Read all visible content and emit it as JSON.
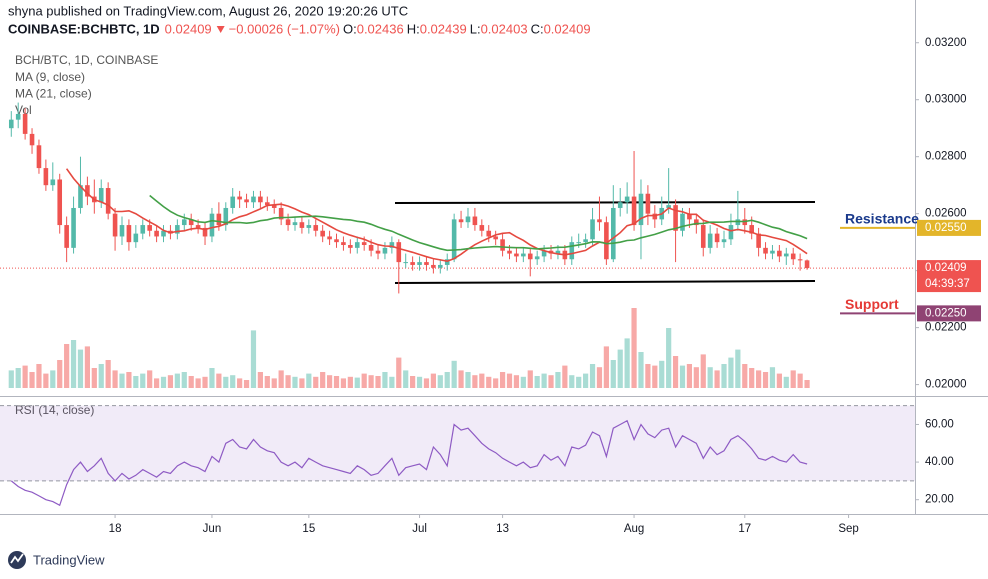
{
  "chart_data": {
    "type": "candlestick",
    "publisher": "shyna published on TradingView.com, August 26, 2020 19:20:26 UTC",
    "symbol": "COINBASE:BCHBTC, 1D",
    "change": "−0.00026 (−1.07%)",
    "ohlc_labels": [
      "O:",
      "H:",
      "L:",
      "C:"
    ],
    "title": "BCH/BTC, 1D, COINBASE",
    "indicators": [
      "MA (9, close)",
      "MA (21, close)",
      "Vol"
    ],
    "ma_periods": [
      9,
      21
    ],
    "rsi_title": "RSI (14, close)",
    "countdown": "04:39:37",
    "footer": "TradingView",
    "annotations": [
      {
        "text": "Resistance",
        "level": {
          "value": 0.0255,
          "label": "0.02550"
        },
        "color": "#1a3a8c",
        "line_color": "#e3b52a"
      },
      {
        "text": "Support",
        "level": {
          "value": 0.0225,
          "label": "0.02250"
        },
        "color": "#e53935",
        "line_color": "#8f4373"
      }
    ],
    "colors": {
      "up": "#53b9a9",
      "down": "#ef5350",
      "ma": [
        "#e5493f",
        "#43a047"
      ],
      "rsi": "#8e5bc4"
    },
    "xlim": [
      -1.63,
      130.6
    ],
    "xticks": [
      {
        "value": 15,
        "label": "18"
      },
      {
        "value": 29,
        "label": "Jun"
      },
      {
        "value": 43,
        "label": "15"
      },
      {
        "value": 59,
        "label": "Jul"
      },
      {
        "value": 71,
        "label": "13"
      },
      {
        "value": 90,
        "label": "Aug"
      },
      {
        "value": 106,
        "label": "17"
      },
      {
        "value": 121,
        "label": "Sep"
      }
    ],
    "ylim": [
      0.0196,
      0.0335
    ],
    "yticks": [
      {
        "value": 0.02,
        "label": "0.02000"
      },
      {
        "value": 0.022,
        "label": "0.02200"
      },
      {
        "value": 0.024,
        "label": "0.02400"
      },
      {
        "value": 0.026,
        "label": "0.02600"
      },
      {
        "value": 0.028,
        "label": "0.02800"
      },
      {
        "value": 0.03,
        "label": "0.03000"
      },
      {
        "value": 0.032,
        "label": "0.03200"
      }
    ],
    "rsi_ylim": [
      12.4,
      74.6
    ],
    "rsi_yticks": [
      {
        "value": 20,
        "label": "20.00"
      },
      {
        "value": 40,
        "label": "40.00"
      },
      {
        "value": 60,
        "label": "60.00"
      }
    ],
    "rsi_levels": [
      30,
      70
    ],
    "candles": [
      [
        0.029,
        0.0296,
        0.0287,
        0.0293
      ],
      [
        0.0293,
        0.0299,
        0.029,
        0.0295
      ],
      [
        0.0295,
        0.0297,
        0.0286,
        0.0288
      ],
      [
        0.0288,
        0.029,
        0.0281,
        0.0284
      ],
      [
        0.0284,
        0.0286,
        0.0274,
        0.0276
      ],
      [
        0.0276,
        0.0279,
        0.0268,
        0.027
      ],
      [
        0.027,
        0.0278,
        0.0268,
        0.0272
      ],
      [
        0.0272,
        0.0274,
        0.0253,
        0.0256
      ],
      [
        0.0256,
        0.0259,
        0.0243,
        0.0248
      ],
      [
        0.0248,
        0.0266,
        0.0246,
        0.0262
      ],
      [
        0.0262,
        0.028,
        0.026,
        0.027
      ],
      [
        0.027,
        0.0273,
        0.0263,
        0.0266
      ],
      [
        0.0266,
        0.0272,
        0.026,
        0.0264
      ],
      [
        0.0264,
        0.0272,
        0.0262,
        0.0269
      ],
      [
        0.0269,
        0.0271,
        0.0258,
        0.026
      ],
      [
        0.026,
        0.0262,
        0.0247,
        0.0252
      ],
      [
        0.0252,
        0.0259,
        0.0249,
        0.0256
      ],
      [
        0.0256,
        0.0258,
        0.0247,
        0.025
      ],
      [
        0.025,
        0.0256,
        0.0248,
        0.0253
      ],
      [
        0.0253,
        0.0258,
        0.0251,
        0.0256
      ],
      [
        0.0256,
        0.0258,
        0.0252,
        0.0254
      ],
      [
        0.0254,
        0.0256,
        0.025,
        0.0252
      ],
      [
        0.0252,
        0.0256,
        0.025,
        0.0254
      ],
      [
        0.0254,
        0.0256,
        0.0251,
        0.0253
      ],
      [
        0.0253,
        0.0258,
        0.0251,
        0.0256
      ],
      [
        0.0256,
        0.026,
        0.0254,
        0.0258
      ],
      [
        0.0258,
        0.026,
        0.0254,
        0.0256
      ],
      [
        0.0256,
        0.0258,
        0.0253,
        0.0255
      ],
      [
        0.0255,
        0.0257,
        0.0249,
        0.0252
      ],
      [
        0.0252,
        0.0262,
        0.025,
        0.026
      ],
      [
        0.026,
        0.0264,
        0.0254,
        0.0256
      ],
      [
        0.0256,
        0.0264,
        0.0254,
        0.0262
      ],
      [
        0.0262,
        0.0269,
        0.026,
        0.0266
      ],
      [
        0.0266,
        0.0268,
        0.0262,
        0.0265
      ],
      [
        0.0265,
        0.0267,
        0.0262,
        0.0264
      ],
      [
        0.0264,
        0.0268,
        0.0262,
        0.0266
      ],
      [
        0.0266,
        0.0268,
        0.0262,
        0.0264
      ],
      [
        0.0264,
        0.0266,
        0.0261,
        0.0263
      ],
      [
        0.0263,
        0.0265,
        0.026,
        0.0262
      ],
      [
        0.0262,
        0.0264,
        0.0256,
        0.0258
      ],
      [
        0.0258,
        0.026,
        0.0254,
        0.0256
      ],
      [
        0.0256,
        0.0259,
        0.0254,
        0.0257
      ],
      [
        0.0257,
        0.0259,
        0.0253,
        0.0255
      ],
      [
        0.0255,
        0.0258,
        0.0253,
        0.0256
      ],
      [
        0.0256,
        0.0258,
        0.0252,
        0.0254
      ],
      [
        0.0254,
        0.0256,
        0.025,
        0.0252
      ],
      [
        0.0252,
        0.0254,
        0.0249,
        0.0251
      ],
      [
        0.0251,
        0.0253,
        0.0248,
        0.025
      ],
      [
        0.025,
        0.0252,
        0.0247,
        0.0249
      ],
      [
        0.0249,
        0.0251,
        0.0246,
        0.0248
      ],
      [
        0.0248,
        0.0252,
        0.0246,
        0.025
      ],
      [
        0.025,
        0.0252,
        0.0247,
        0.0249
      ],
      [
        0.0249,
        0.0251,
        0.0245,
        0.0247
      ],
      [
        0.0247,
        0.0249,
        0.0244,
        0.0246
      ],
      [
        0.0246,
        0.025,
        0.0244,
        0.0248
      ],
      [
        0.0248,
        0.0252,
        0.0246,
        0.025
      ],
      [
        0.025,
        0.0251,
        0.0232,
        0.0243
      ],
      [
        0.0243,
        0.0246,
        0.0241,
        0.0243
      ],
      [
        0.0243,
        0.0245,
        0.024,
        0.0242
      ],
      [
        0.0242,
        0.0245,
        0.024,
        0.0243
      ],
      [
        0.0243,
        0.0245,
        0.024,
        0.0242
      ],
      [
        0.0242,
        0.0244,
        0.0239,
        0.0241
      ],
      [
        0.0241,
        0.0244,
        0.0239,
        0.0242
      ],
      [
        0.0242,
        0.0246,
        0.024,
        0.0244
      ],
      [
        0.0244,
        0.026,
        0.0243,
        0.0258
      ],
      [
        0.0258,
        0.0261,
        0.0255,
        0.0257
      ],
      [
        0.0257,
        0.0262,
        0.0255,
        0.0259
      ],
      [
        0.0259,
        0.0262,
        0.0254,
        0.0256
      ],
      [
        0.0256,
        0.0258,
        0.0252,
        0.0254
      ],
      [
        0.0254,
        0.0256,
        0.025,
        0.0252
      ],
      [
        0.0252,
        0.0254,
        0.0249,
        0.0251
      ],
      [
        0.0251,
        0.0253,
        0.0245,
        0.0247
      ],
      [
        0.0247,
        0.0249,
        0.0244,
        0.0246
      ],
      [
        0.0246,
        0.0248,
        0.0243,
        0.0245
      ],
      [
        0.0245,
        0.0248,
        0.0243,
        0.0246
      ],
      [
        0.0246,
        0.0248,
        0.0238,
        0.0244
      ],
      [
        0.0244,
        0.0247,
        0.0242,
        0.0245
      ],
      [
        0.0245,
        0.0249,
        0.0243,
        0.0247
      ],
      [
        0.0247,
        0.0249,
        0.0244,
        0.0246
      ],
      [
        0.0246,
        0.0249,
        0.0244,
        0.0247
      ],
      [
        0.0247,
        0.0249,
        0.0242,
        0.0244
      ],
      [
        0.0244,
        0.0252,
        0.0242,
        0.025
      ],
      [
        0.025,
        0.0253,
        0.0248,
        0.025
      ],
      [
        0.025,
        0.0253,
        0.0248,
        0.0251
      ],
      [
        0.0251,
        0.0262,
        0.0249,
        0.0258
      ],
      [
        0.0258,
        0.0266,
        0.0254,
        0.0257
      ],
      [
        0.0257,
        0.0259,
        0.0242,
        0.0244
      ],
      [
        0.0244,
        0.027,
        0.0243,
        0.0262
      ],
      [
        0.0262,
        0.0269,
        0.0259,
        0.0264
      ],
      [
        0.0264,
        0.0271,
        0.026,
        0.0266
      ],
      [
        0.0266,
        0.0282,
        0.0254,
        0.0256
      ],
      [
        0.0256,
        0.0272,
        0.0244,
        0.0267
      ],
      [
        0.0267,
        0.027,
        0.0256,
        0.026
      ],
      [
        0.026,
        0.0263,
        0.0255,
        0.0258
      ],
      [
        0.0258,
        0.0266,
        0.0256,
        0.0262
      ],
      [
        0.0262,
        0.0276,
        0.026,
        0.0263
      ],
      [
        0.0263,
        0.0265,
        0.0243,
        0.0254
      ],
      [
        0.0254,
        0.0262,
        0.0252,
        0.026
      ],
      [
        0.026,
        0.0262,
        0.0255,
        0.0258
      ],
      [
        0.0258,
        0.026,
        0.0253,
        0.0256
      ],
      [
        0.0256,
        0.0258,
        0.0245,
        0.0248
      ],
      [
        0.0248,
        0.0256,
        0.0246,
        0.0253
      ],
      [
        0.0253,
        0.0255,
        0.0248,
        0.025
      ],
      [
        0.025,
        0.0254,
        0.0248,
        0.0251
      ],
      [
        0.0251,
        0.026,
        0.0249,
        0.0256
      ],
      [
        0.0256,
        0.0268,
        0.0254,
        0.0258
      ],
      [
        0.0258,
        0.0262,
        0.0253,
        0.0256
      ],
      [
        0.0256,
        0.0259,
        0.0251,
        0.0253
      ],
      [
        0.0253,
        0.0255,
        0.0245,
        0.0248
      ],
      [
        0.0248,
        0.025,
        0.0244,
        0.0246
      ],
      [
        0.0246,
        0.0249,
        0.0244,
        0.0247
      ],
      [
        0.0247,
        0.0249,
        0.0243,
        0.0245
      ],
      [
        0.0245,
        0.0248,
        0.0242,
        0.0246
      ],
      [
        0.0246,
        0.0248,
        0.0242,
        0.0244
      ],
      [
        0.0244,
        0.0246,
        0.024,
        0.02436
      ],
      [
        0.02436,
        0.02439,
        0.02403,
        0.02409
      ]
    ],
    "volume": [
      22,
      25,
      28,
      20,
      30,
      18,
      22,
      35,
      55,
      60,
      48,
      52,
      25,
      30,
      35,
      22,
      18,
      20,
      15,
      18,
      22,
      12,
      14,
      16,
      18,
      20,
      15,
      12,
      14,
      25,
      18,
      14,
      16,
      12,
      10,
      72,
      20,
      15,
      12,
      22,
      16,
      14,
      12,
      18,
      14,
      20,
      16,
      15,
      12,
      14,
      13,
      18,
      16,
      15,
      20,
      14,
      38,
      22,
      15,
      14,
      12,
      18,
      16,
      20,
      34,
      22,
      20,
      16,
      18,
      14,
      12,
      20,
      18,
      16,
      14,
      22,
      15,
      18,
      16,
      20,
      28,
      16,
      14,
      18,
      30,
      26,
      52,
      35,
      48,
      62,
      100,
      45,
      30,
      28,
      34,
      75,
      40,
      28,
      30,
      26,
      42,
      26,
      22,
      30,
      38,
      48,
      30,
      25,
      22,
      20,
      26,
      18,
      14,
      22,
      18,
      10
    ],
    "rsi": [
      30,
      27,
      25,
      24,
      22,
      20,
      19,
      17,
      28,
      36,
      40,
      35,
      38,
      42,
      34,
      30,
      34,
      31,
      33,
      36,
      34,
      32,
      35,
      34,
      38,
      40,
      38,
      37,
      35,
      43,
      40,
      50,
      52,
      48,
      47,
      52,
      48,
      46,
      45,
      40,
      38,
      40,
      37,
      42,
      40,
      38,
      37,
      36,
      35,
      34,
      38,
      36,
      33,
      34,
      38,
      42,
      33,
      37,
      38,
      39,
      36,
      48,
      44,
      38,
      60,
      57,
      58,
      54,
      50,
      47,
      45,
      42,
      40,
      38,
      40,
      37,
      38,
      44,
      41,
      43,
      38,
      48,
      47,
      49,
      56,
      54,
      43,
      58,
      60,
      62,
      52,
      60,
      55,
      53,
      57,
      58,
      48,
      54,
      52,
      50,
      42,
      48,
      44,
      46,
      52,
      54,
      51,
      47,
      42,
      41,
      43,
      41,
      40,
      44,
      40,
      39
    ]
  }
}
